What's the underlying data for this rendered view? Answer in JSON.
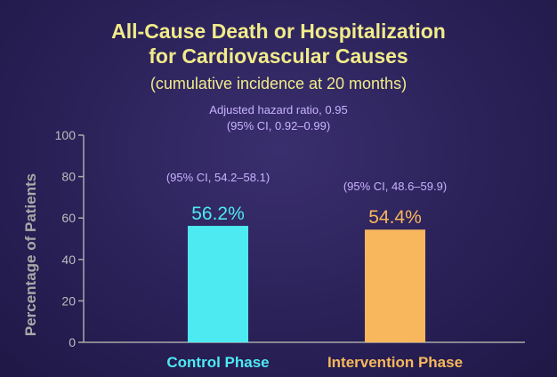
{
  "colors": {
    "title": "#f1eb8a",
    "annotation": "#c8b3ff",
    "axis": "#a9a9a9",
    "control": "#4eeaf2",
    "intervention": "#f8b75c"
  },
  "chart_data": {
    "type": "bar",
    "title_line1": "All-Cause Death or Hospitalization",
    "title_line2": "for Cardiovascular Causes",
    "subtitle": "(cumulative incidence at 20 months)",
    "annotation_line1": "Adjusted hazard ratio, 0.95",
    "annotation_line2": "(95% CI, 0.92–0.99)",
    "ylabel": "Percentage of Patients",
    "xlabel": "",
    "ylim": [
      0,
      100
    ],
    "yticks": [
      "0",
      "20",
      "40",
      "60",
      "80",
      "100"
    ],
    "grid": false,
    "categories": [
      "Control Phase",
      "Intervention Phase"
    ],
    "values": [
      56.2,
      54.4
    ],
    "value_labels": [
      "56.2%",
      "54.4%"
    ],
    "ci_labels": [
      "(95% CI, 54.2–58.1)",
      "(95% CI, 48.6–59.9)"
    ]
  }
}
